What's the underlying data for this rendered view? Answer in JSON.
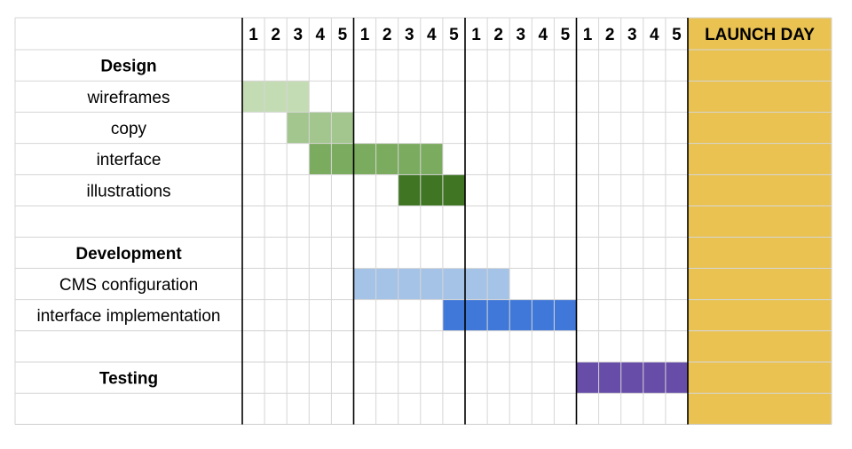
{
  "chart_data": {
    "type": "gantt",
    "launch_label": "LAUNCH DAY",
    "day_labels": [
      "1",
      "2",
      "3",
      "4",
      "5"
    ],
    "week_count": 4,
    "rows": [
      {
        "label": "Design",
        "bold": true
      },
      {
        "label": "wireframes",
        "bold": false
      },
      {
        "label": "copy",
        "bold": false
      },
      {
        "label": "interface",
        "bold": false
      },
      {
        "label": "illustrations",
        "bold": false
      },
      {
        "label": "",
        "bold": false
      },
      {
        "label": "Development",
        "bold": true
      },
      {
        "label": "CMS configuration",
        "bold": false
      },
      {
        "label": "interface implementation",
        "bold": false
      },
      {
        "label": "",
        "bold": false
      },
      {
        "label": "Testing",
        "bold": true
      },
      {
        "label": "",
        "bold": false
      }
    ],
    "tasks": [
      {
        "row": 1,
        "start_day": 1,
        "end_day": 3,
        "color": "#c4dcb4"
      },
      {
        "row": 2,
        "start_day": 3,
        "end_day": 5,
        "color": "#a3c68e"
      },
      {
        "row": 3,
        "start_day": 4,
        "end_day": 9,
        "color": "#7aab5e"
      },
      {
        "row": 4,
        "start_day": 8,
        "end_day": 10,
        "color": "#3f7523"
      },
      {
        "row": 7,
        "start_day": 6,
        "end_day": 12,
        "color": "#a5c3e6"
      },
      {
        "row": 8,
        "start_day": 10,
        "end_day": 15,
        "color": "#3f78d8"
      },
      {
        "row": 10,
        "start_day": 16,
        "end_day": 20,
        "color": "#674ca8"
      }
    ],
    "launch_color": "#e9c252"
  }
}
